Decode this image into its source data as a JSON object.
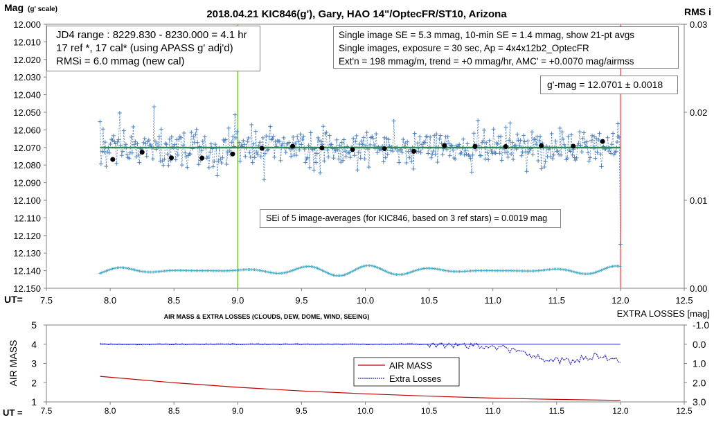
{
  "chart_data": [
    {
      "type": "scatter",
      "title": "2018.04.21  KIC846(g'),  Gary, HAO 14\"/OptecFR/ST10,  Arizona",
      "ylabel_main": "Mag",
      "ylabel_sub": "(g' scale)",
      "y2label": "RMS i",
      "xlabel": "UT=",
      "xlim": [
        7.5,
        12.5
      ],
      "xticks": [
        "7.5",
        "8.0",
        "8.5",
        "9.0",
        "9.5",
        "10.0",
        "10.5",
        "11.0",
        "11.5",
        "12.0",
        "12.5"
      ],
      "ylim": [
        12.0,
        12.15
      ],
      "yinverted": true,
      "yticks": [
        "12.000",
        "12.010",
        "12.020",
        "12.030",
        "12.040",
        "12.050",
        "12.060",
        "12.070",
        "12.080",
        "12.090",
        "12.100",
        "12.110",
        "12.120",
        "12.130",
        "12.140",
        "12.150"
      ],
      "y2lim": [
        0.0,
        0.03
      ],
      "y2ticks": [
        "0.03",
        "0.02",
        "0.01",
        "0.00"
      ],
      "vertical_markers": [
        {
          "x": 9.0,
          "color": "#92d050"
        },
        {
          "x": 12.0,
          "color": "#ff8080"
        }
      ],
      "model_mag": 12.0701,
      "series": [
        {
          "name": "21-pt averages",
          "marker": "black-dot",
          "x": [
            8.02,
            8.25,
            8.48,
            8.72,
            8.96,
            9.19,
            9.43,
            9.66,
            9.9,
            10.15,
            10.38,
            10.62,
            10.86,
            11.1,
            11.38,
            11.63,
            11.86
          ],
          "y": [
            12.0768,
            12.0727,
            12.0759,
            12.076,
            12.0737,
            12.0705,
            12.0693,
            12.0703,
            12.0712,
            12.0707,
            12.0722,
            12.069,
            12.0695,
            12.0695,
            12.069,
            12.0693,
            12.0666
          ]
        }
      ],
      "rms_band": {
        "mean": 12.14,
        "amplitude": 0.003,
        "color": "#4bacc6"
      }
    },
    {
      "type": "line",
      "title": "AIR MASS & EXTRA LOSSES (CLOUDS, DEW, DOME, WIND, SEEING)",
      "ylabel": "AIR MASS",
      "y2label": "EXTRA LOSSES [mag]",
      "xlabel": "UT =",
      "xlim": [
        7.5,
        12.5
      ],
      "xticks": [
        "7.5",
        "8.0",
        "8.5",
        "9.0",
        "9.5",
        "10.0",
        "10.5",
        "11.0",
        "11.5",
        "12.0",
        "12.5"
      ],
      "ylim": [
        1,
        5
      ],
      "yticks": [
        "5",
        "4",
        "3",
        "2",
        "1"
      ],
      "y2lim": [
        -1.0,
        3.0
      ],
      "y2inverted": true,
      "y2ticks": [
        "-1.0",
        "0.0",
        "1.0",
        "2.0",
        "3.0"
      ],
      "legend": [
        "AIR MASS",
        "Extra Losses"
      ],
      "series": [
        {
          "name": "AIR MASS",
          "color": "#c00000",
          "x": [
            7.92,
            8.5,
            9.0,
            9.5,
            10.0,
            10.5,
            11.0,
            11.5,
            12.0
          ],
          "y": [
            2.33,
            2.0,
            1.76,
            1.57,
            1.42,
            1.3,
            1.2,
            1.13,
            1.08
          ]
        },
        {
          "name": "Extra Losses",
          "color": "#1f1fbf",
          "x": [
            7.92,
            10.5,
            11.0,
            11.2,
            11.4,
            11.6,
            11.8,
            12.0
          ],
          "y": [
            0.0,
            0.0,
            0.1,
            0.4,
            0.8,
            0.9,
            0.6,
            0.8
          ]
        }
      ]
    }
  ],
  "annotations": {
    "box_left": [
      "JD4 range : 8229.830 - 8230.000 = 4.1  hr",
      "17 ref *, 17 cal* (using APASS g' adj'd)",
      "RMSi = 6.0 mmag (new cal)"
    ],
    "box_right": [
      "Single image SE = 5.3 mmag, 10-min SE = 1.4 mmag, show  21-pt avgs",
      "Single images, exposure = 30 sec, Ap = 4x4x12b2_OptecFR",
      "Ext'n = 198 mmag/m, trend =  +0 mmag/hr, AMC' = +0.0070 mag/airmss"
    ],
    "gmag": "g'-mag = 12.0701 ± 0.0018",
    "sei": "SEi of 5 image-averages (for KIC846, based on 3 ref stars) = 0.0019  mag"
  },
  "colors": {
    "points": "#4f81bd",
    "trend": "#2e8b57",
    "box_border": "#7f7f7f"
  }
}
